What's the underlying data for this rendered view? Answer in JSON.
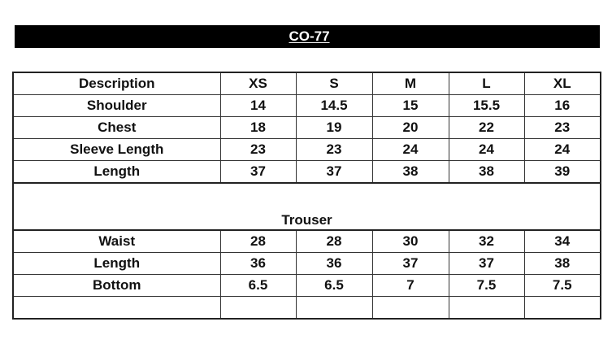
{
  "title": "CO-77",
  "table": {
    "headers": [
      "Description",
      "XS",
      "S",
      "M",
      "L",
      "XL"
    ],
    "top_rows": [
      {
        "label": "Shoulder",
        "values": [
          "14",
          "14.5",
          "15",
          "15.5",
          "16"
        ]
      },
      {
        "label": "Chest",
        "values": [
          "18",
          "19",
          "20",
          "22",
          "23"
        ]
      },
      {
        "label": "Sleeve Length",
        "values": [
          "23",
          "23",
          "24",
          "24",
          "24"
        ]
      },
      {
        "label": "Length",
        "values": [
          "37",
          "37",
          "38",
          "38",
          "39"
        ]
      }
    ],
    "section_title": "Trouser",
    "bottom_rows": [
      {
        "label": "Waist",
        "values": [
          "28",
          "28",
          "30",
          "32",
          "34"
        ]
      },
      {
        "label": "Length",
        "values": [
          "36",
          "36",
          "37",
          "37",
          "38"
        ]
      },
      {
        "label": "Bottom",
        "values": [
          "6.5",
          "6.5",
          "7",
          "7.5",
          "7.5"
        ]
      }
    ]
  }
}
